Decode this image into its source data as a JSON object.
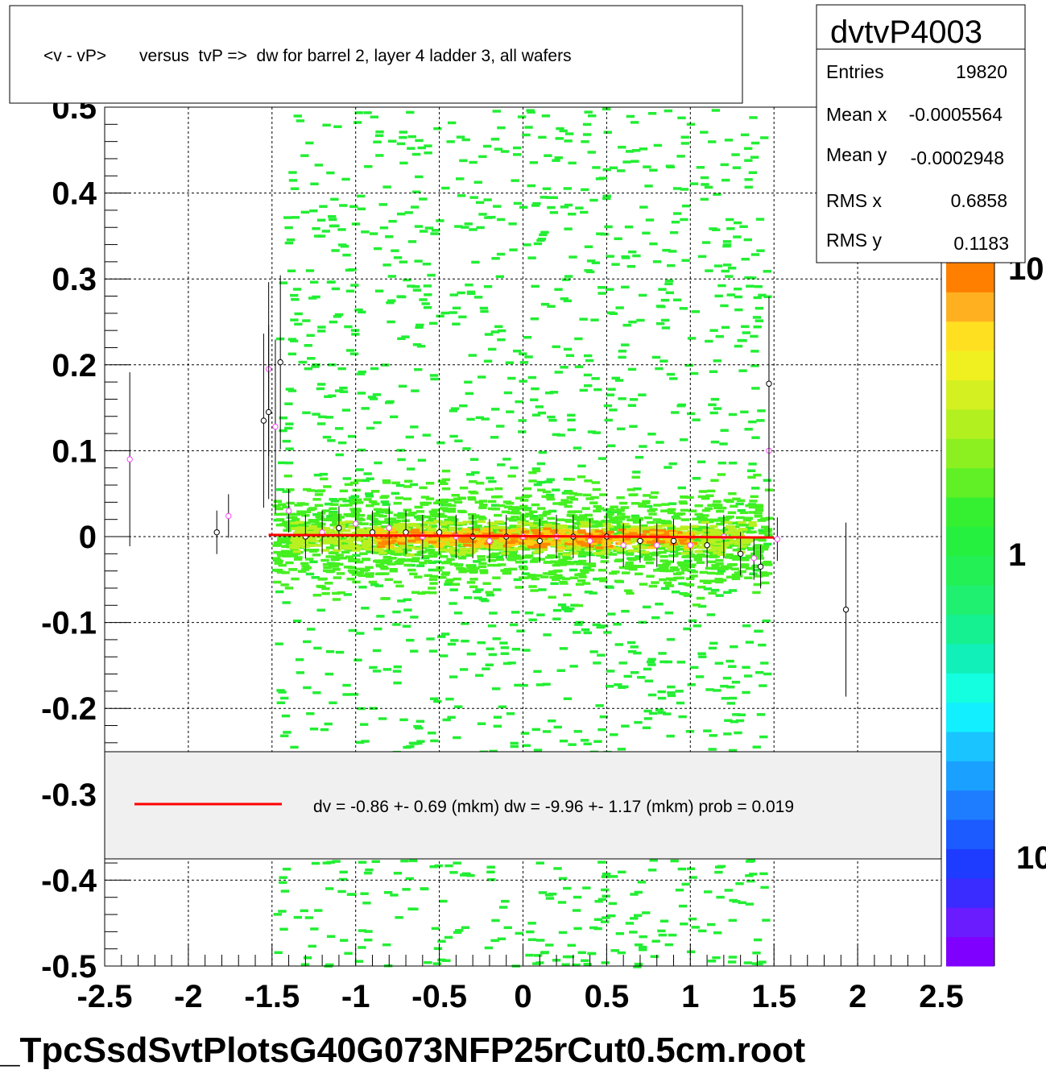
{
  "title": "<v - vP>       versus  tvP =>  dw for barrel 2, layer 4 ladder 3, all wafers",
  "stats": {
    "name": "dvtvP4003",
    "rows": [
      {
        "label": "Entries",
        "value": "19820"
      },
      {
        "label": "Mean x",
        "value": "-0.0005564"
      },
      {
        "label": "Mean y",
        "value": "-0.0002948"
      },
      {
        "label": "RMS x",
        "value": "0.6858"
      },
      {
        "label": "RMS y",
        "value": "0.1183"
      }
    ]
  },
  "palette": {
    "labels": [
      "10",
      "1",
      "10"
    ],
    "colors": [
      "#7f00ff",
      "#6a1cff",
      "#3a2bff",
      "#1e3cff",
      "#1b5bff",
      "#1e7cff",
      "#1aa0ff",
      "#19c4ff",
      "#12f0ff",
      "#14ffe0",
      "#10f0b8",
      "#15f090",
      "#20f070",
      "#22f055",
      "#25f040",
      "#35f030",
      "#60f025",
      "#8cf020",
      "#b3f020",
      "#d4f020",
      "#f0f020",
      "#ffe020",
      "#ffb020",
      "#ff8000"
    ]
  },
  "legend": {
    "text": "dv =   -0.86 +-  0.69 (mkm) dw =   -9.96 +-  1.17 (mkm) prob = 0.019",
    "line_color": "#ff0000"
  },
  "footer": "_TpcSsdSvtPlotsG40G073NFP25rCut0.5cm.root",
  "chart_data": {
    "type": "heatmap",
    "title": "<v - vP>       versus  tvP =>  dw for barrel 2, layer 4 ladder 3, all wafers",
    "xlabel": "",
    "ylabel": "",
    "xlim": [
      -2.5,
      2.5
    ],
    "ylim": [
      -0.5,
      0.5
    ],
    "x_ticks": [
      "-2.5",
      "-2",
      "-1.5",
      "-1",
      "-0.5",
      "0",
      "0.5",
      "1",
      "1.5",
      "2",
      "2.5"
    ],
    "y_ticks": [
      "0.5",
      "0.4",
      "0.3",
      "0.2",
      "0.1",
      "0",
      "-0.1",
      "-0.2",
      "-0.3",
      "-0.4",
      "-0.5"
    ],
    "grid": true,
    "occupied_x_range": [
      -1.5,
      1.45
    ],
    "core_band_y": [
      -0.02,
      0.02
    ],
    "profile_points": [
      {
        "x": -2.35,
        "y": 0.09
      },
      {
        "x": -1.83,
        "y": 0.005
      },
      {
        "x": -1.76,
        "y": 0.024
      },
      {
        "x": -1.55,
        "y": 0.135
      },
      {
        "x": -1.52,
        "y": 0.195
      },
      {
        "x": -1.52,
        "y": 0.145
      },
      {
        "x": -1.48,
        "y": 0.128
      },
      {
        "x": -1.45,
        "y": 0.203
      },
      {
        "x": -1.4,
        "y": 0.03
      },
      {
        "x": -1.3,
        "y": 0.0
      },
      {
        "x": -1.2,
        "y": 0.005
      },
      {
        "x": -1.1,
        "y": 0.01
      },
      {
        "x": -1.0,
        "y": 0.015
      },
      {
        "x": -0.9,
        "y": 0.005
      },
      {
        "x": -0.8,
        "y": 0.01
      },
      {
        "x": -0.7,
        "y": 0.005
      },
      {
        "x": -0.6,
        "y": 0.0
      },
      {
        "x": -0.5,
        "y": 0.005
      },
      {
        "x": -0.4,
        "y": 0.0
      },
      {
        "x": -0.3,
        "y": 0.0
      },
      {
        "x": -0.2,
        "y": -0.005
      },
      {
        "x": -0.1,
        "y": 0.0
      },
      {
        "x": 0.0,
        "y": 0.0
      },
      {
        "x": 0.1,
        "y": -0.005
      },
      {
        "x": 0.2,
        "y": 0.0
      },
      {
        "x": 0.3,
        "y": 0.0
      },
      {
        "x": 0.4,
        "y": -0.005
      },
      {
        "x": 0.5,
        "y": 0.0
      },
      {
        "x": 0.6,
        "y": -0.01
      },
      {
        "x": 0.7,
        "y": -0.005
      },
      {
        "x": 0.8,
        "y": -0.01
      },
      {
        "x": 0.9,
        "y": -0.005
      },
      {
        "x": 1.0,
        "y": -0.01
      },
      {
        "x": 1.1,
        "y": -0.01
      },
      {
        "x": 1.2,
        "y": 0.0
      },
      {
        "x": 1.3,
        "y": -0.02
      },
      {
        "x": 1.38,
        "y": -0.025
      },
      {
        "x": 1.42,
        "y": -0.035
      },
      {
        "x": 1.47,
        "y": 0.1
      },
      {
        "x": 1.47,
        "y": 0.178
      },
      {
        "x": 1.52,
        "y": -0.003
      },
      {
        "x": 1.93,
        "y": -0.085
      }
    ],
    "fit_line": {
      "x": [
        -1.52,
        1.5
      ],
      "y": [
        0.002,
        -0.001
      ]
    }
  }
}
